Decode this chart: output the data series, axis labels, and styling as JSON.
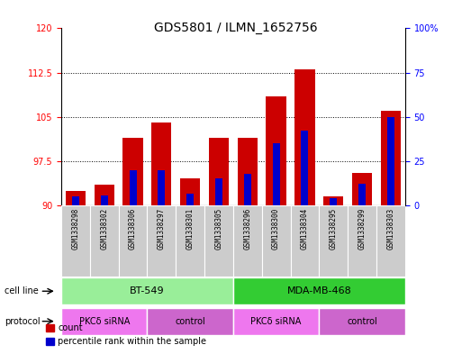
{
  "title": "GDS5801 / ILMN_1652756",
  "samples": [
    "GSM1338298",
    "GSM1338302",
    "GSM1338306",
    "GSM1338297",
    "GSM1338301",
    "GSM1338305",
    "GSM1338296",
    "GSM1338300",
    "GSM1338304",
    "GSM1338295",
    "GSM1338299",
    "GSM1338303"
  ],
  "count_values": [
    92.5,
    93.5,
    101.5,
    104.0,
    94.5,
    101.5,
    101.5,
    108.5,
    113.0,
    91.5,
    95.5,
    106.0
  ],
  "percentile_values": [
    5.0,
    5.5,
    20.0,
    20.0,
    6.5,
    15.0,
    18.0,
    35.0,
    42.0,
    4.0,
    12.0,
    50.0
  ],
  "ylim_left": [
    90,
    120
  ],
  "ylim_right": [
    0,
    100
  ],
  "yticks_left": [
    90,
    97.5,
    105,
    112.5,
    120
  ],
  "yticks_right": [
    0,
    25,
    50,
    75,
    100
  ],
  "bar_color_red": "#cc0000",
  "bar_color_blue": "#0000cc",
  "cell_line_groups": [
    {
      "label": "BT-549",
      "start": 0,
      "end": 6,
      "color": "#99ee99"
    },
    {
      "label": "MDA-MB-468",
      "start": 6,
      "end": 12,
      "color": "#33cc33"
    }
  ],
  "protocol_groups": [
    {
      "label": "PKCδ siRNA",
      "start": 0,
      "end": 3,
      "color": "#ee77ee"
    },
    {
      "label": "control",
      "start": 3,
      "end": 6,
      "color": "#cc66cc"
    },
    {
      "label": "PKCδ siRNA",
      "start": 6,
      "end": 9,
      "color": "#ee77ee"
    },
    {
      "label": "control",
      "start": 9,
      "end": 12,
      "color": "#cc66cc"
    }
  ],
  "bg_color": "#cccccc",
  "title_fontsize": 10,
  "tick_fontsize": 7,
  "label_fontsize": 7.5
}
